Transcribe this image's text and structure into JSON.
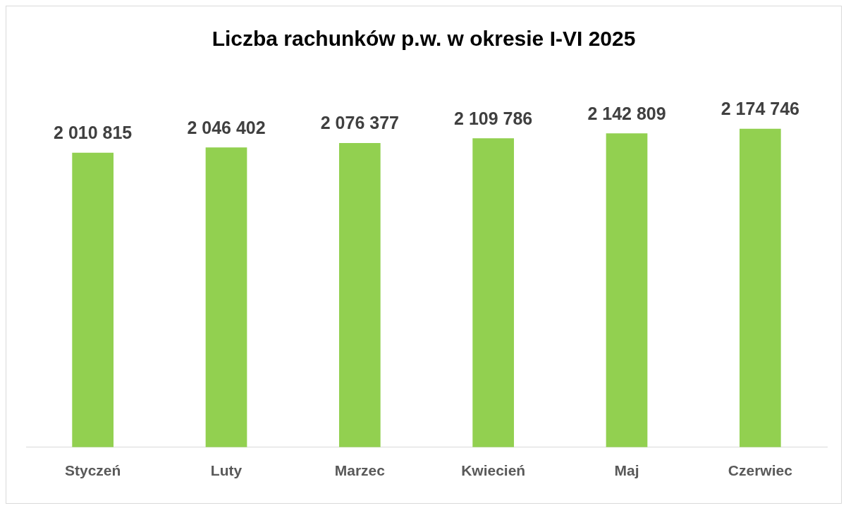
{
  "chart_data": {
    "type": "bar",
    "title": "Liczba rachunków p.w. w okresie I-VI 2025",
    "categories": [
      "Styczeń",
      "Luty",
      "Marzec",
      "Kwiecień",
      "Maj",
      "Czerwiec"
    ],
    "values": [
      2010815,
      2046402,
      2076377,
      2109786,
      2142809,
      2174746
    ],
    "color": "#92d050",
    "tick_labels": "x",
    "data_labels": true,
    "grid": false,
    "legend": false
  }
}
